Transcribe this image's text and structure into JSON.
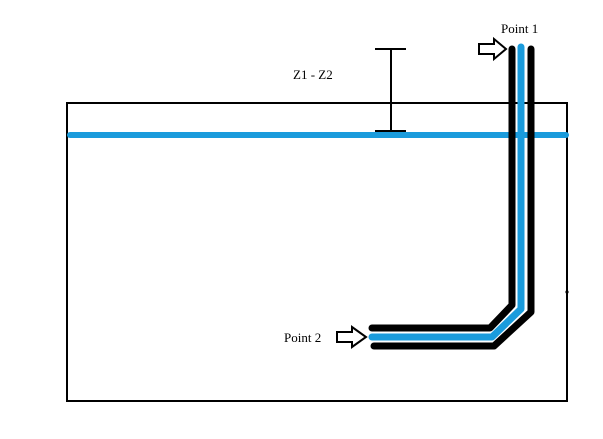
{
  "labels": {
    "point1": "Point 1",
    "point2": "Point 2",
    "height_difference": "Z1 - Z2"
  },
  "colors": {
    "water": "#1a9bdc",
    "pipe_wall": "#000000",
    "tank_outline": "#000000",
    "background": "#ffffff"
  },
  "icons": {
    "point1_marker": "arrow-right-outline",
    "point2_marker": "arrow-right-outline"
  }
}
